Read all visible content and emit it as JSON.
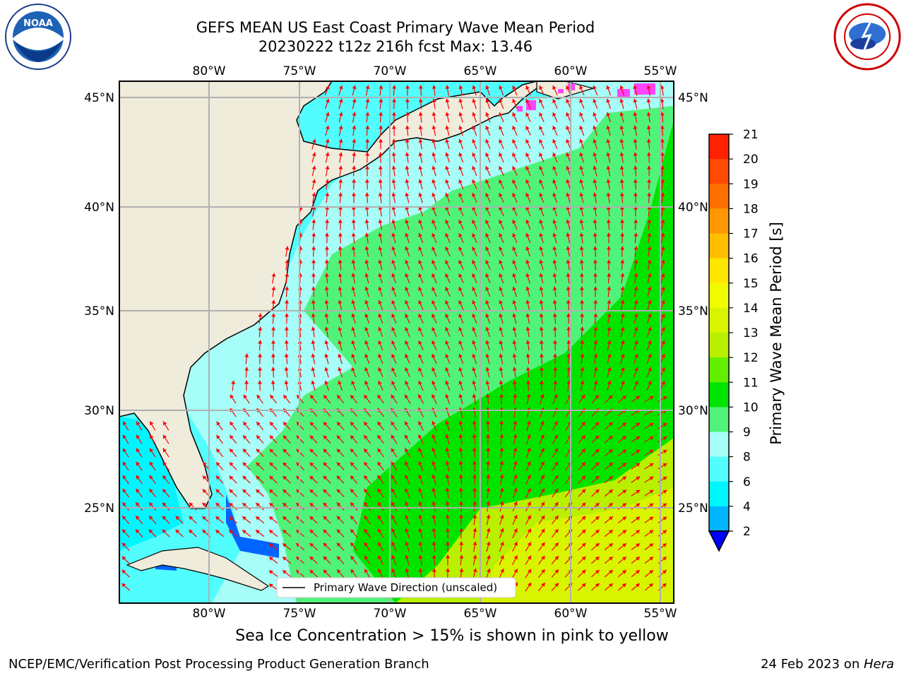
{
  "header": {
    "title_line1": "GEFS MEAN US East Coast Primary Wave Mean Period",
    "title_line2": "20230222 t12z 216h fcst   Max: 13.46"
  },
  "logos": {
    "left": {
      "name": "noaa-logo",
      "text": "NOAA"
    },
    "right": {
      "name": "nws-logo"
    }
  },
  "map": {
    "lon_ticks_top": [
      "80°W",
      "75°W",
      "70°W",
      "65°W",
      "60°W",
      "55°W"
    ],
    "lon_ticks_bottom": [
      "80°W",
      "75°W",
      "70°W",
      "65°W",
      "60°W",
      "55°W"
    ],
    "lat_ticks_left": [
      "45°N",
      "40°N",
      "35°N",
      "30°N",
      "25°N"
    ],
    "lat_ticks_right": [
      "45°N",
      "40°N",
      "35°N",
      "30°N",
      "25°N"
    ],
    "legend_label": "Primary Wave Direction (unscaled)",
    "arrow_color": "#ff0000",
    "land_color": "#efecdc"
  },
  "colorbar": {
    "label": "Primary Wave Mean Period [s]",
    "ticks": [
      "21",
      "20",
      "19",
      "18",
      "17",
      "16",
      "15",
      "14",
      "13",
      "12",
      "11",
      "10",
      "9",
      "8",
      "6",
      "4",
      "2"
    ],
    "colors": [
      "#ff0000",
      "#ff2200",
      "#ff4a00",
      "#ff7000",
      "#ff9800",
      "#ffbf00",
      "#ffe600",
      "#f2fa00",
      "#d8f400",
      "#b9ef00",
      "#64ee00",
      "#00e400",
      "#50f37a",
      "#a7fdf7",
      "#52fdfd",
      "#00f6ff",
      "#00b5ff",
      "#0064ff",
      "#0000ff"
    ]
  },
  "caption": "Sea Ice Concentration > 15% is shown in pink to yellow",
  "footer": {
    "left": "NCEP/EMC/Verification Post Processing Product Generation Branch",
    "right_prefix": "24 Feb 2023 on ",
    "right_italic": "Hera"
  }
}
